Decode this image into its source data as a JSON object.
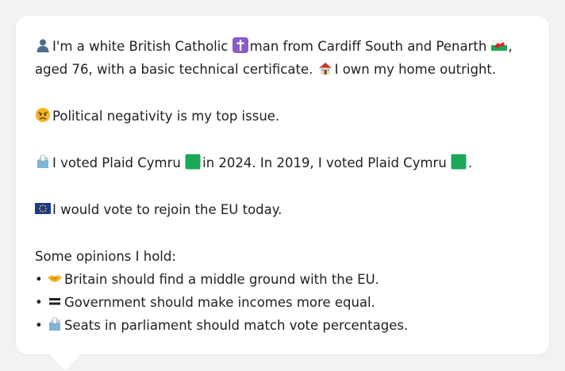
{
  "profile": {
    "line1_part1": "I'm a white British Catholic",
    "line1_part2": "man from Cardiff South and Penarth",
    "line1_part3": ",",
    "line2_part1": "aged 76, with a basic technical certificate.",
    "line2_part2": "I own my home outright.",
    "issue_text": "Political negativity is my top issue.",
    "vote_part1": "I voted Plaid Cymru",
    "vote_part2": "in 2024. In 2019, I voted Plaid Cymru",
    "vote_part3": ".",
    "eu_text": "I would vote to rejoin the EU today.",
    "opinions_heading": "Some opinions I hold:",
    "bullet_char": "•",
    "opinions": [
      "Britain should find a middle ground with the EU.",
      "Government should make incomes more equal.",
      "Seats in parliament should match vote percentages."
    ]
  },
  "icons": {
    "person": "person-silhouette-icon",
    "cross": "latin-cross-icon",
    "flag": "wales-flag-icon",
    "house": "house-icon",
    "angry": "angry-face-icon",
    "ballot": "ballot-box-icon",
    "green": "green-square-icon",
    "eu": "eu-flag-icon",
    "handshake": "handshake-icon",
    "equals": "equals-icon"
  },
  "colors": {
    "background": "#f2f2f2",
    "bubble": "#ffffff",
    "text": "#1f1f1f",
    "plaid_green": "#1aa85a",
    "cross_purple": "#8a5cc7",
    "eu_blue": "#1b3a8c"
  }
}
